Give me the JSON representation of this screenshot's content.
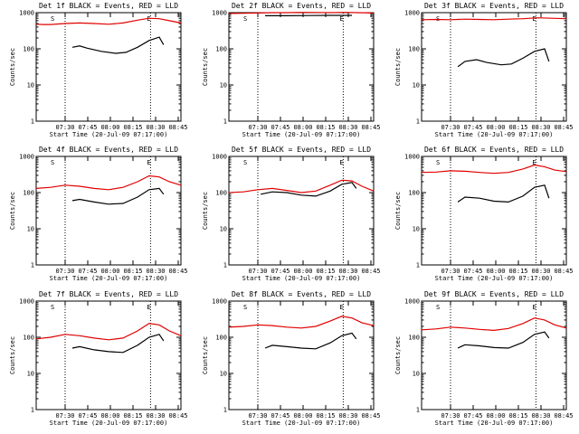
{
  "chart_data": [
    {
      "type": "line",
      "title": "Det 1f BLACK = Events, RED = LLD",
      "xlabel": "Start Time (20-Jul-09 07:17:00)",
      "ylabel": "Counts/sec",
      "yscale": "log",
      "ylim": [
        1,
        1000
      ],
      "xlim": [
        0,
        100
      ],
      "x_tick_labels": [
        "07:30",
        "07:45",
        "08:00",
        "08:15",
        "08:30",
        "08:45"
      ],
      "y_tick_labels": [
        "1",
        "10",
        "100",
        "1000"
      ],
      "markers": [
        "S",
        "E"
      ],
      "series": [
        {
          "name": "RED = LLD",
          "color": "#e00000",
          "x": [
            0,
            5,
            10,
            20,
            30,
            40,
            50,
            60,
            70,
            78,
            85,
            92,
            100
          ],
          "values": [
            480,
            470,
            470,
            500,
            520,
            500,
            480,
            520,
            620,
            700,
            680,
            600,
            520
          ]
        },
        {
          "name": "BLACK = Events",
          "color": "#000000",
          "x": [
            25,
            30,
            35,
            45,
            55,
            62,
            70,
            78,
            85,
            88
          ],
          "values": [
            110,
            120,
            105,
            85,
            75,
            80,
            110,
            170,
            210,
            130
          ]
        }
      ]
    },
    {
      "type": "line",
      "title": "Det 2f BLACK = Events, RED = LLD",
      "xlabel": "Start Time (20-Jul-09 07:17:00)",
      "ylabel": "Counts/sec",
      "yscale": "log",
      "ylim": [
        1,
        1000
      ],
      "xlim": [
        0,
        100
      ],
      "x_tick_labels": [
        "07:30",
        "07:45",
        "08:00",
        "08:15",
        "08:30",
        "08:45"
      ],
      "y_tick_labels": [
        "1",
        "10",
        "100",
        "1000"
      ],
      "markers": [
        "S",
        "E"
      ],
      "series": [
        {
          "name": "RED = LLD",
          "color": "#e00000",
          "x": [
            0,
            10,
            20,
            30,
            40,
            50,
            60,
            70,
            80,
            90,
            100
          ],
          "values": [
            950,
            960,
            980,
            1000,
            1000,
            1020,
            1010,
            1000,
            1020,
            1000,
            980
          ]
        },
        {
          "name": "BLACK = Events",
          "color": "#000000",
          "x": [
            25,
            40,
            55,
            70,
            85
          ],
          "values": [
            820,
            820,
            830,
            840,
            840
          ]
        }
      ]
    },
    {
      "type": "line",
      "title": "Det 3f BLACK = Events, RED = LLD",
      "xlabel": "Start Time (20-Jul-09 07:17:00)",
      "ylabel": "Counts/sec",
      "yscale": "log",
      "ylim": [
        1,
        1000
      ],
      "xlim": [
        0,
        100
      ],
      "x_tick_labels": [
        "07:30",
        "07:45",
        "08:00",
        "08:15",
        "08:30",
        "08:45"
      ],
      "y_tick_labels": [
        "1",
        "10",
        "100",
        "1000"
      ],
      "markers": [
        "S",
        "E"
      ],
      "series": [
        {
          "name": "RED = LLD",
          "color": "#e00000",
          "x": [
            0,
            10,
            20,
            30,
            40,
            50,
            60,
            70,
            80,
            90,
            100
          ],
          "values": [
            640,
            650,
            640,
            660,
            650,
            640,
            660,
            680,
            720,
            700,
            680
          ]
        },
        {
          "name": "BLACK = Events",
          "color": "#000000",
          "x": [
            25,
            30,
            38,
            45,
            55,
            62,
            70,
            78,
            85,
            88
          ],
          "values": [
            32,
            45,
            50,
            42,
            36,
            38,
            55,
            85,
            100,
            45
          ]
        }
      ]
    },
    {
      "type": "line",
      "title": "Det 4f BLACK = Events, RED = LLD",
      "xlabel": "Start Time (20-Jul-09 07:17:00)",
      "ylabel": "Counts/sec",
      "yscale": "log",
      "ylim": [
        1,
        1000
      ],
      "xlim": [
        0,
        100
      ],
      "x_tick_labels": [
        "07:30",
        "07:45",
        "08:00",
        "08:15",
        "08:30",
        "08:45"
      ],
      "y_tick_labels": [
        "1",
        "10",
        "100",
        "1000"
      ],
      "markers": [
        "S",
        "E"
      ],
      "series": [
        {
          "name": "RED = LLD",
          "color": "#e00000",
          "x": [
            0,
            10,
            20,
            30,
            40,
            50,
            60,
            70,
            78,
            85,
            92,
            100
          ],
          "values": [
            130,
            140,
            160,
            150,
            130,
            120,
            140,
            200,
            290,
            270,
            200,
            160
          ]
        },
        {
          "name": "BLACK = Events",
          "color": "#000000",
          "x": [
            25,
            30,
            40,
            50,
            60,
            70,
            78,
            85,
            88
          ],
          "values": [
            60,
            65,
            55,
            48,
            50,
            75,
            120,
            130,
            90
          ]
        }
      ]
    },
    {
      "type": "line",
      "title": "Det 5f BLACK = Events, RED = LLD",
      "xlabel": "Start Time (20-Jul-09 07:17:00)",
      "ylabel": "Counts/sec",
      "yscale": "log",
      "ylim": [
        1,
        1000
      ],
      "xlim": [
        0,
        100
      ],
      "x_tick_labels": [
        "07:30",
        "07:45",
        "08:00",
        "08:15",
        "08:30",
        "08:45"
      ],
      "y_tick_labels": [
        "1",
        "10",
        "100",
        "1000"
      ],
      "markers": [
        "S",
        "E"
      ],
      "series": [
        {
          "name": "RED = LLD",
          "color": "#e00000",
          "x": [
            0,
            10,
            20,
            30,
            40,
            50,
            60,
            70,
            78,
            85,
            92,
            100
          ],
          "values": [
            100,
            105,
            120,
            130,
            115,
            100,
            110,
            160,
            220,
            210,
            150,
            110
          ]
        },
        {
          "name": "BLACK = Events",
          "color": "#000000",
          "x": [
            22,
            30,
            40,
            50,
            60,
            70,
            78,
            85,
            88
          ],
          "values": [
            90,
            105,
            100,
            85,
            80,
            110,
            170,
            190,
            130
          ]
        }
      ]
    },
    {
      "type": "line",
      "title": "Det 6f BLACK = Events, RED = LLD",
      "xlabel": "Start Time (20-Jul-09 07:17:00)",
      "ylabel": "Counts/sec",
      "yscale": "log",
      "ylim": [
        1,
        1000
      ],
      "xlim": [
        0,
        100
      ],
      "x_tick_labels": [
        "07:30",
        "07:45",
        "08:00",
        "08:15",
        "08:30",
        "08:45"
      ],
      "y_tick_labels": [
        "1",
        "10",
        "100",
        "1000"
      ],
      "markers": [
        "S",
        "E"
      ],
      "series": [
        {
          "name": "RED = LLD",
          "color": "#e00000",
          "x": [
            0,
            10,
            20,
            30,
            40,
            50,
            60,
            70,
            78,
            85,
            92,
            100
          ],
          "values": [
            360,
            370,
            400,
            390,
            360,
            340,
            360,
            450,
            580,
            520,
            420,
            380
          ]
        },
        {
          "name": "BLACK = Events",
          "color": "#000000",
          "x": [
            25,
            30,
            40,
            50,
            60,
            70,
            78,
            85,
            88
          ],
          "values": [
            55,
            75,
            70,
            58,
            55,
            80,
            140,
            160,
            70
          ]
        }
      ]
    },
    {
      "type": "line",
      "title": "Det 7f BLACK = Events, RED = LLD",
      "xlabel": "Start Time (20-Jul-09 07:17:00)",
      "ylabel": "Counts/sec",
      "yscale": "log",
      "ylim": [
        1,
        1000
      ],
      "xlim": [
        0,
        100
      ],
      "x_tick_labels": [
        "07:30",
        "07:45",
        "08:00",
        "08:15",
        "08:30",
        "08:45"
      ],
      "y_tick_labels": [
        "1",
        "10",
        "100",
        "1000"
      ],
      "markers": [
        "S",
        "E"
      ],
      "series": [
        {
          "name": "RED = LLD",
          "color": "#e00000",
          "x": [
            0,
            10,
            20,
            30,
            40,
            50,
            60,
            70,
            78,
            85,
            92,
            100
          ],
          "values": [
            90,
            100,
            120,
            110,
            95,
            85,
            95,
            150,
            240,
            220,
            150,
            110
          ]
        },
        {
          "name": "BLACK = Events",
          "color": "#000000",
          "x": [
            25,
            30,
            40,
            50,
            60,
            70,
            78,
            85,
            88
          ],
          "values": [
            50,
            55,
            45,
            40,
            38,
            60,
            100,
            120,
            80
          ]
        }
      ]
    },
    {
      "type": "line",
      "title": "Det 8f BLACK = Events, RED = LLD",
      "xlabel": "Start Time (20-Jul-09 07:17:00)",
      "ylabel": "Counts/sec",
      "yscale": "log",
      "ylim": [
        1,
        1000
      ],
      "xlim": [
        0,
        100
      ],
      "x_tick_labels": [
        "07:30",
        "07:45",
        "08:00",
        "08:15",
        "08:30",
        "08:45"
      ],
      "y_tick_labels": [
        "1",
        "10",
        "100",
        "1000"
      ],
      "markers": [
        "S",
        "E"
      ],
      "series": [
        {
          "name": "RED = LLD",
          "color": "#e00000",
          "x": [
            0,
            10,
            20,
            30,
            40,
            50,
            60,
            70,
            78,
            85,
            92,
            100
          ],
          "values": [
            190,
            200,
            220,
            210,
            190,
            180,
            200,
            280,
            380,
            340,
            250,
            210
          ]
        },
        {
          "name": "BLACK = Events",
          "color": "#000000",
          "x": [
            25,
            30,
            40,
            50,
            60,
            70,
            78,
            85,
            88
          ],
          "values": [
            50,
            60,
            55,
            50,
            48,
            70,
            110,
            130,
            90
          ]
        }
      ]
    },
    {
      "type": "line",
      "title": "Det 9f BLACK = Events, RED = LLD",
      "xlabel": "Start Time (20-Jul-09 07:17:00)",
      "ylabel": "Counts/sec",
      "yscale": "log",
      "ylim": [
        1,
        1000
      ],
      "xlim": [
        0,
        100
      ],
      "x_tick_labels": [
        "07:30",
        "07:45",
        "08:00",
        "08:15",
        "08:30",
        "08:45"
      ],
      "y_tick_labels": [
        "1",
        "10",
        "100",
        "1000"
      ],
      "markers": [
        "S",
        "E"
      ],
      "series": [
        {
          "name": "RED = LLD",
          "color": "#e00000",
          "x": [
            0,
            10,
            20,
            30,
            40,
            50,
            60,
            70,
            78,
            85,
            92,
            100
          ],
          "values": [
            160,
            170,
            190,
            180,
            165,
            155,
            175,
            240,
            340,
            300,
            220,
            180
          ]
        },
        {
          "name": "BLACK = Events",
          "color": "#000000",
          "x": [
            25,
            30,
            40,
            50,
            60,
            70,
            78,
            85,
            88
          ],
          "values": [
            50,
            62,
            58,
            52,
            50,
            72,
            120,
            140,
            95
          ]
        }
      ]
    }
  ]
}
